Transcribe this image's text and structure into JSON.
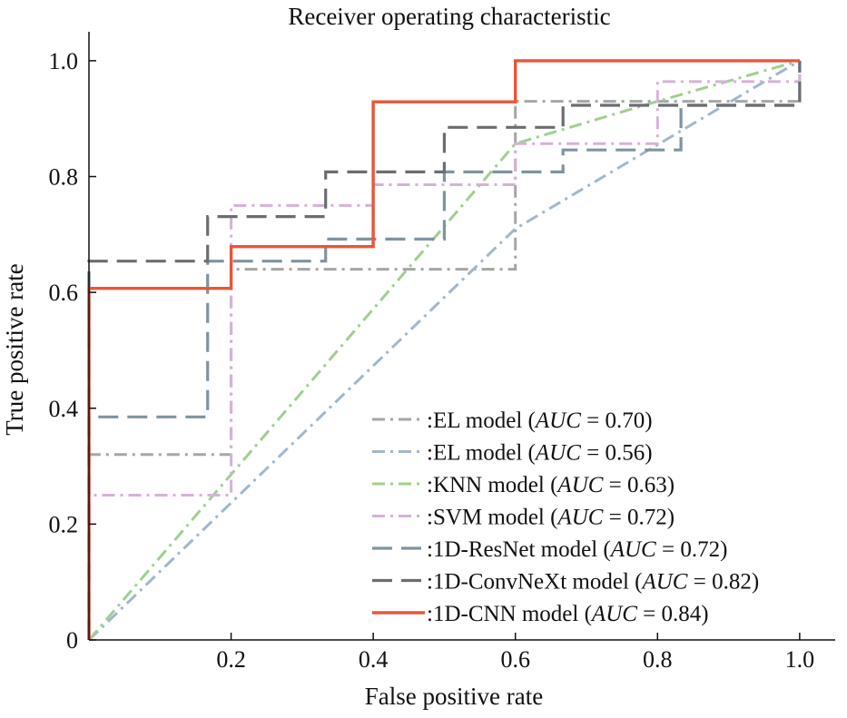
{
  "chart_data": {
    "type": "line",
    "title": "Receiver operating characteristic",
    "xlabel": "False positive rate",
    "ylabel": "True positive rate",
    "xlim": [
      0,
      1.05
    ],
    "ylim": [
      0,
      1.05
    ],
    "xticks": [
      0.2,
      0.4,
      0.6,
      0.8,
      1.0
    ],
    "xtick_labels": [
      "0.2",
      "0.4",
      "0.6",
      "0.8",
      "1.0"
    ],
    "yticks": [
      0,
      0.2,
      0.4,
      0.6,
      0.8,
      1.0
    ],
    "ytick_labels": [
      "0",
      "0.2",
      "0.4",
      "0.6",
      "0.8",
      "1.0"
    ],
    "grid": false,
    "legend_position": "bottom-right",
    "series": [
      {
        "name": ":EL model",
        "auc": "0.70",
        "color": "#a6a6a6",
        "style": "dashdot",
        "x": [
          0,
          0,
          0,
          0.2,
          0.2,
          0.6,
          0.6,
          1.0,
          1.0
        ],
        "y": [
          0,
          0.32,
          0.32,
          0.32,
          0.64,
          0.64,
          0.93,
          0.93,
          1.0
        ]
      },
      {
        "name": ":EL model",
        "auc": "0.56",
        "color": "#9fb8d0",
        "style": "dashdot",
        "x": [
          0,
          0.6,
          1.0
        ],
        "y": [
          0,
          0.71,
          1.0
        ]
      },
      {
        "name": ":KNN model",
        "auc": "0.63",
        "color": "#9fd08f",
        "style": "dashdot",
        "x": [
          0,
          0.6,
          0.8,
          1.0
        ],
        "y": [
          0,
          0.857,
          0.93,
          1.0
        ]
      },
      {
        "name": ":SVM model",
        "auc": "0.72",
        "color": "#d5b2d8",
        "style": "dashdot",
        "x": [
          0,
          0,
          0,
          0.2,
          0.2,
          0.4,
          0.4,
          0.6,
          0.6,
          0.8,
          0.8,
          1.0,
          1.0
        ],
        "y": [
          0,
          0.25,
          0.25,
          0.25,
          0.75,
          0.75,
          0.786,
          0.786,
          0.857,
          0.857,
          0.964,
          0.964,
          1.0
        ]
      },
      {
        "name": ":1D-ResNet model",
        "auc": "0.72",
        "color": "#7f93a1",
        "style": "dashed",
        "x": [
          0,
          0,
          0,
          0.167,
          0.167,
          0.333,
          0.333,
          0.5,
          0.5,
          0.667,
          0.667,
          0.833,
          0.833,
          1.0,
          1.0
        ],
        "y": [
          0,
          0.385,
          0.385,
          0.385,
          0.654,
          0.654,
          0.692,
          0.692,
          0.808,
          0.808,
          0.846,
          0.846,
          0.923,
          0.923,
          1.0
        ]
      },
      {
        "name": ":1D-ConvNeXt model",
        "auc": "0.82",
        "color": "#6b6e71",
        "style": "dashed",
        "x": [
          0,
          0,
          0,
          0.167,
          0.167,
          0.333,
          0.333,
          0.5,
          0.5,
          0.667,
          0.667,
          1.0,
          1.0
        ],
        "y": [
          0,
          0.654,
          0.654,
          0.654,
          0.731,
          0.731,
          0.808,
          0.808,
          0.885,
          0.885,
          0.923,
          0.923,
          1.0
        ]
      },
      {
        "name": ":1D-CNN model",
        "auc": "0.84",
        "color": "#e8563a",
        "style": "solid",
        "x": [
          0,
          0,
          0,
          0.2,
          0.2,
          0.4,
          0.4,
          0.6,
          0.6,
          1.0
        ],
        "y": [
          0,
          0.607,
          0.607,
          0.607,
          0.679,
          0.679,
          0.929,
          0.929,
          1.0,
          1.0
        ]
      }
    ],
    "legend_auc_label": "AUC"
  }
}
